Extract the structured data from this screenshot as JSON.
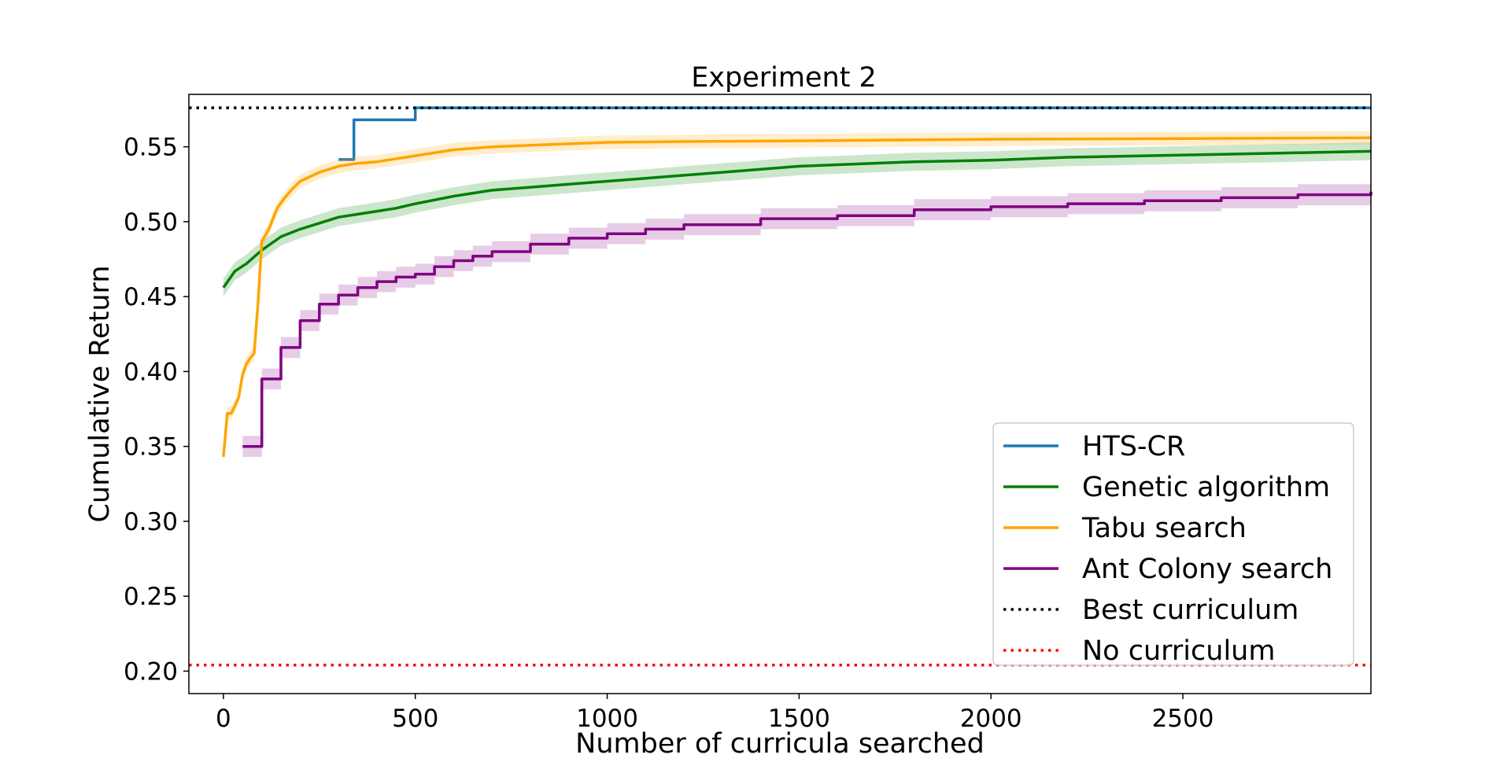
{
  "chart_data": {
    "type": "line",
    "title": "Experiment 2",
    "xlabel": "Number of curricula searched",
    "ylabel": "Cumulative Return",
    "xlim": [
      -90,
      2990
    ],
    "ylim": [
      0.185,
      0.585
    ],
    "xticks": [
      0,
      500,
      1000,
      1500,
      2000,
      2500
    ],
    "xtick_labels": [
      "0",
      "500",
      "1000",
      "1500",
      "2000",
      "2500"
    ],
    "yticks": [
      0.2,
      0.25,
      0.3,
      0.35,
      0.4,
      0.45,
      0.5,
      0.55
    ],
    "ytick_labels": [
      "0.20",
      "0.25",
      "0.30",
      "0.35",
      "0.40",
      "0.45",
      "0.50",
      "0.55"
    ],
    "grid": false,
    "legend_position": "lower-right",
    "series": [
      {
        "name": "HTS-CR",
        "color": "#1f77b4",
        "style": "step",
        "x": [
          300,
          330,
          340,
          440,
          500,
          2990
        ],
        "y": [
          0.5415,
          0.5415,
          0.568,
          0.568,
          0.576,
          0.576
        ]
      },
      {
        "name": "Genetic algorithm",
        "color": "#008000",
        "style": "line",
        "band": 0.006,
        "x": [
          0,
          30,
          60,
          100,
          150,
          200,
          250,
          300,
          350,
          400,
          450,
          500,
          600,
          700,
          800,
          900,
          1000,
          1100,
          1200,
          1300,
          1400,
          1500,
          1600,
          1800,
          2000,
          2200,
          2400,
          2600,
          2800,
          2990
        ],
        "y": [
          0.456,
          0.467,
          0.472,
          0.481,
          0.49,
          0.495,
          0.499,
          0.503,
          0.505,
          0.507,
          0.509,
          0.512,
          0.517,
          0.521,
          0.523,
          0.525,
          0.527,
          0.529,
          0.531,
          0.533,
          0.535,
          0.537,
          0.538,
          0.54,
          0.541,
          0.543,
          0.544,
          0.545,
          0.546,
          0.547
        ]
      },
      {
        "name": "Tabu search",
        "color": "#ffa500",
        "style": "line",
        "band": 0.0045,
        "x": [
          0,
          10,
          20,
          30,
          40,
          50,
          60,
          70,
          80,
          90,
          100,
          110,
          120,
          140,
          160,
          180,
          200,
          250,
          300,
          350,
          400,
          500,
          600,
          700,
          800,
          900,
          1000,
          1200,
          1500,
          2000,
          2500,
          2990
        ],
        "y": [
          0.343,
          0.372,
          0.372,
          0.377,
          0.383,
          0.398,
          0.405,
          0.409,
          0.412,
          0.445,
          0.487,
          0.491,
          0.496,
          0.509,
          0.516,
          0.522,
          0.527,
          0.533,
          0.537,
          0.539,
          0.54,
          0.544,
          0.548,
          0.55,
          0.551,
          0.552,
          0.553,
          0.5535,
          0.554,
          0.555,
          0.5555,
          0.556
        ]
      },
      {
        "name": "Ant Colony search",
        "color": "#800080",
        "style": "step",
        "band": 0.007,
        "x": [
          50,
          100,
          150,
          200,
          250,
          300,
          350,
          400,
          450,
          500,
          550,
          600,
          650,
          700,
          800,
          900,
          1000,
          1100,
          1200,
          1400,
          1600,
          1800,
          2000,
          2200,
          2400,
          2600,
          2800,
          2990
        ],
        "y": [
          0.35,
          0.395,
          0.416,
          0.434,
          0.445,
          0.451,
          0.456,
          0.46,
          0.463,
          0.465,
          0.47,
          0.474,
          0.477,
          0.48,
          0.485,
          0.489,
          0.492,
          0.495,
          0.498,
          0.502,
          0.504,
          0.508,
          0.51,
          0.512,
          0.514,
          0.516,
          0.518,
          0.52
        ]
      },
      {
        "name": "Best curriculum",
        "color": "#000000",
        "style": "dotted",
        "y_const": 0.576
      },
      {
        "name": "No curriculum",
        "color": "#ff0000",
        "style": "dotted",
        "y_const": 0.204
      }
    ]
  }
}
